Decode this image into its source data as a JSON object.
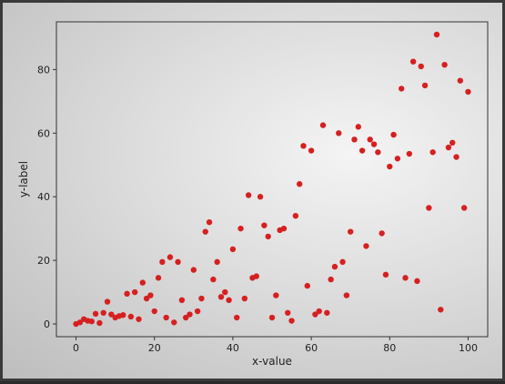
{
  "chart_data": {
    "type": "scatter",
    "xlabel": "x-value",
    "ylabel": "y-label",
    "xlim": [
      -5,
      105
    ],
    "ylim": [
      -4,
      95
    ],
    "xticks": [
      0,
      20,
      40,
      60,
      80,
      100
    ],
    "yticks": [
      0,
      20,
      40,
      60,
      80
    ],
    "grid": false,
    "marker_color": "#d62020",
    "points": [
      [
        0,
        0
      ],
      [
        1,
        0.5
      ],
      [
        2,
        1.5
      ],
      [
        3,
        1
      ],
      [
        4,
        0.8
      ],
      [
        5,
        3.2
      ],
      [
        6,
        0.3
      ],
      [
        7,
        3.5
      ],
      [
        8,
        7
      ],
      [
        9,
        3
      ],
      [
        10,
        2
      ],
      [
        11,
        2.5
      ],
      [
        12,
        2.8
      ],
      [
        13,
        9.5
      ],
      [
        14,
        2.3
      ],
      [
        15,
        10
      ],
      [
        16,
        1.5
      ],
      [
        17,
        13
      ],
      [
        18,
        8
      ],
      [
        19,
        9
      ],
      [
        20,
        4
      ],
      [
        21,
        14.5
      ],
      [
        22,
        19.5
      ],
      [
        23,
        2
      ],
      [
        24,
        21
      ],
      [
        25,
        0.5
      ],
      [
        26,
        19.5
      ],
      [
        27,
        7.5
      ],
      [
        28,
        2
      ],
      [
        29,
        3
      ],
      [
        30,
        17
      ],
      [
        31,
        4
      ],
      [
        32,
        8
      ],
      [
        33,
        29
      ],
      [
        34,
        32
      ],
      [
        35,
        14
      ],
      [
        36,
        19.5
      ],
      [
        37,
        8.5
      ],
      [
        38,
        10
      ],
      [
        39,
        7.5
      ],
      [
        40,
        23.5
      ],
      [
        41,
        2
      ],
      [
        42,
        30
      ],
      [
        43,
        8
      ],
      [
        44,
        40.5
      ],
      [
        45,
        14.5
      ],
      [
        46,
        15
      ],
      [
        47,
        40
      ],
      [
        48,
        31
      ],
      [
        49,
        27.5
      ],
      [
        50,
        2
      ],
      [
        51,
        9
      ],
      [
        52,
        29.5
      ],
      [
        53,
        30
      ],
      [
        54,
        3.5
      ],
      [
        55,
        1
      ],
      [
        56,
        34
      ],
      [
        57,
        44
      ],
      [
        58,
        56
      ],
      [
        59,
        12
      ],
      [
        60,
        54.5
      ],
      [
        61,
        3
      ],
      [
        62,
        4
      ],
      [
        63,
        62.5
      ],
      [
        64,
        3.5
      ],
      [
        65,
        14
      ],
      [
        66,
        18
      ],
      [
        67,
        60
      ],
      [
        68,
        19.5
      ],
      [
        69,
        9
      ],
      [
        70,
        29
      ],
      [
        71,
        58
      ],
      [
        72,
        62
      ],
      [
        73,
        54.5
      ],
      [
        74,
        24.5
      ],
      [
        75,
        58
      ],
      [
        76,
        56.5
      ],
      [
        77,
        54
      ],
      [
        78,
        28.5
      ],
      [
        79,
        15.5
      ],
      [
        80,
        49.5
      ],
      [
        81,
        59.5
      ],
      [
        82,
        52
      ],
      [
        83,
        74
      ],
      [
        84,
        14.5
      ],
      [
        85,
        53.5
      ],
      [
        86,
        82.5
      ],
      [
        87,
        13.5
      ],
      [
        88,
        81
      ],
      [
        89,
        75
      ],
      [
        90,
        36.5
      ],
      [
        91,
        54
      ],
      [
        92,
        91
      ],
      [
        93,
        4.5
      ],
      [
        94,
        81.5
      ],
      [
        95,
        55.5
      ],
      [
        96,
        57
      ],
      [
        97,
        52.5
      ],
      [
        98,
        76.5
      ],
      [
        99,
        36.5
      ],
      [
        100,
        73
      ]
    ]
  }
}
